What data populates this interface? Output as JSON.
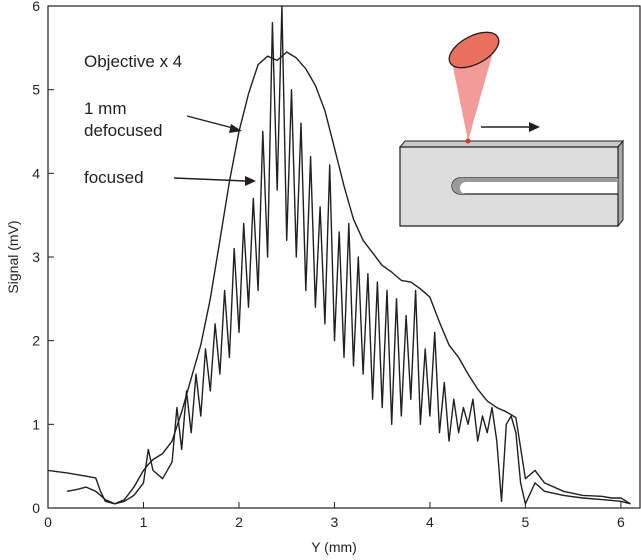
{
  "chart_data": {
    "type": "line",
    "xlabel": "Y (mm)",
    "ylabel": "Signal  (mV)",
    "xlim": [
      0,
      6.2
    ],
    "ylim": [
      0,
      6
    ],
    "xticks": [
      "0",
      "1",
      "2",
      "3",
      "4",
      "5",
      "6"
    ],
    "yticks": [
      "0",
      "1",
      "2",
      "3",
      "4",
      "5",
      "6"
    ],
    "grid": false,
    "annotations": {
      "objective": "Objective   x 4",
      "defocused_line1": "1 mm",
      "defocused_line2": "defocused",
      "focused": "focused"
    },
    "series": [
      {
        "name": "1 mm defocused",
        "color": "#231f20",
        "x": [
          0.0,
          0.2,
          0.4,
          0.5,
          0.55,
          0.6,
          0.7,
          0.8,
          0.9,
          1.0,
          1.05,
          1.1,
          1.2,
          1.3,
          1.4,
          1.5,
          1.6,
          1.7,
          1.8,
          1.9,
          2.0,
          2.1,
          2.2,
          2.3,
          2.4,
          2.5,
          2.6,
          2.7,
          2.8,
          2.9,
          3.0,
          3.1,
          3.2,
          3.3,
          3.4,
          3.5,
          3.6,
          3.7,
          3.8,
          3.9,
          4.0,
          4.1,
          4.2,
          4.3,
          4.4,
          4.5,
          4.6,
          4.7,
          4.8,
          4.9,
          5.0,
          5.1,
          5.2,
          5.4,
          5.6,
          5.8,
          5.9,
          6.0,
          6.1
        ],
        "y": [
          0.45,
          0.42,
          0.38,
          0.36,
          0.2,
          0.08,
          0.05,
          0.1,
          0.25,
          0.45,
          0.52,
          0.58,
          0.65,
          0.8,
          1.15,
          1.55,
          1.95,
          2.5,
          3.2,
          3.9,
          4.5,
          4.95,
          5.3,
          5.4,
          5.35,
          5.45,
          5.38,
          5.25,
          5.05,
          4.75,
          4.3,
          3.85,
          3.45,
          3.2,
          3.05,
          2.9,
          2.82,
          2.72,
          2.7,
          2.62,
          2.52,
          2.22,
          1.95,
          1.8,
          1.6,
          1.42,
          1.28,
          1.2,
          1.15,
          1.08,
          0.35,
          0.45,
          0.3,
          0.2,
          0.15,
          0.14,
          0.12,
          0.12,
          0.05
        ]
      },
      {
        "name": "focused",
        "color": "#231f20",
        "x": [
          0.2,
          0.3,
          0.4,
          0.5,
          0.55,
          0.6,
          0.7,
          0.8,
          0.9,
          1.0,
          1.05,
          1.1,
          1.2,
          1.3,
          1.35,
          1.4,
          1.45,
          1.5,
          1.55,
          1.6,
          1.65,
          1.7,
          1.75,
          1.8,
          1.85,
          1.9,
          1.95,
          2.0,
          2.05,
          2.1,
          2.15,
          2.2,
          2.25,
          2.3,
          2.35,
          2.4,
          2.45,
          2.5,
          2.55,
          2.6,
          2.65,
          2.7,
          2.75,
          2.8,
          2.85,
          2.9,
          2.95,
          3.0,
          3.05,
          3.1,
          3.15,
          3.2,
          3.25,
          3.3,
          3.35,
          3.4,
          3.45,
          3.5,
          3.55,
          3.6,
          3.65,
          3.7,
          3.75,
          3.8,
          3.85,
          3.9,
          3.95,
          4.0,
          4.05,
          4.1,
          4.15,
          4.2,
          4.25,
          4.3,
          4.35,
          4.4,
          4.45,
          4.5,
          4.55,
          4.6,
          4.65,
          4.7,
          4.75,
          4.8,
          4.85,
          4.9,
          4.95,
          5.0,
          5.1,
          5.2,
          5.4,
          5.6,
          5.8,
          6.0,
          6.1
        ],
        "y": [
          0.2,
          0.22,
          0.25,
          0.2,
          0.15,
          0.1,
          0.05,
          0.08,
          0.15,
          0.3,
          0.7,
          0.45,
          0.35,
          0.55,
          1.2,
          0.7,
          1.4,
          0.9,
          1.6,
          1.1,
          1.9,
          1.4,
          2.2,
          1.6,
          2.6,
          1.8,
          3.1,
          2.1,
          3.4,
          2.4,
          3.7,
          2.6,
          4.5,
          3.0,
          5.8,
          3.8,
          6.0,
          3.2,
          5.0,
          3.0,
          4.6,
          2.6,
          4.2,
          2.4,
          3.6,
          2.2,
          4.1,
          2.0,
          3.3,
          1.8,
          3.4,
          1.7,
          3.0,
          1.6,
          2.8,
          1.3,
          2.7,
          1.2,
          2.6,
          1.0,
          2.5,
          1.1,
          2.3,
          1.3,
          2.6,
          1.0,
          1.9,
          1.1,
          2.1,
          0.9,
          1.5,
          0.8,
          1.3,
          0.9,
          1.2,
          1.0,
          1.3,
          0.8,
          1.1,
          0.9,
          1.2,
          0.8,
          0.08,
          1.0,
          1.1,
          0.9,
          0.3,
          0.05,
          0.3,
          0.2,
          0.15,
          0.12,
          0.1,
          0.08,
          0.05
        ]
      }
    ]
  }
}
